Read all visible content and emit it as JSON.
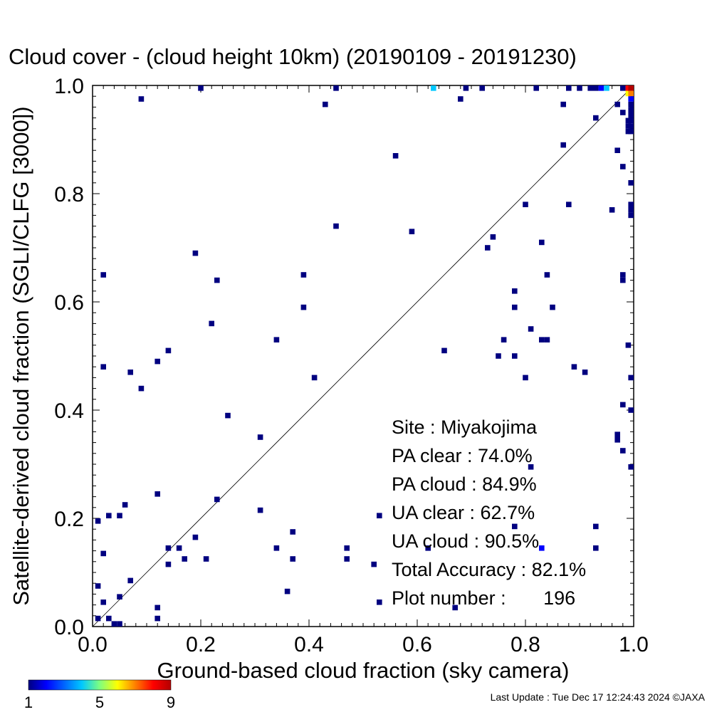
{
  "title": "Cloud cover - (cloud height 10km)  (20190109 - 20191230)",
  "stats": {
    "site": "Site : Miyakojima",
    "pa_clear": "PA clear :  74.0%",
    "pa_cloud": "PA cloud :  84.9%",
    "ua_clear": "UA clear :  62.7%",
    "ua_cloud": "UA cloud :  90.5%",
    "total_accuracy": "Total Accuracy :  82.1%",
    "plot_number": "Plot number :       196"
  },
  "colorbar": {
    "labels": [
      "1",
      "5",
      "9"
    ]
  },
  "footer": "Last Update : Tue Dec 17 12:24:43 2024  ©JAXA",
  "chart_data": {
    "type": "heatmap",
    "xlabel": "Ground-based cloud fraction (sky camera)",
    "ylabel": "Satellite-derived cloud fraction (SGLI/CLFG [3000])",
    "xlim": [
      0,
      1
    ],
    "ylim": [
      0,
      1
    ],
    "x_ticks": [
      "0.0",
      "0.2",
      "0.4",
      "0.6",
      "0.8",
      "1.0"
    ],
    "y_ticks": [
      "0.0",
      "0.2",
      "0.4",
      "0.6",
      "0.8",
      "1.0"
    ],
    "diagonal": true,
    "colorscale": {
      "min": 1,
      "max": 9,
      "colors": [
        "#000080",
        "#0000ff",
        "#00c8ff",
        "#7fff7f",
        "#ffff00",
        "#ff7f00",
        "#ff0000",
        "#b40000"
      ]
    },
    "points": [
      {
        "x": 0.01,
        "y": 0.195,
        "c": 1
      },
      {
        "x": 0.02,
        "y": 0.65,
        "c": 1
      },
      {
        "x": 0.02,
        "y": 0.48,
        "c": 1
      },
      {
        "x": 0.02,
        "y": 0.135,
        "c": 1
      },
      {
        "x": 0.01,
        "y": 0.075,
        "c": 1
      },
      {
        "x": 0.02,
        "y": 0.045,
        "c": 1
      },
      {
        "x": 0.01,
        "y": 0.015,
        "c": 1
      },
      {
        "x": 0.03,
        "y": 0.015,
        "c": 1
      },
      {
        "x": 0.04,
        "y": 0.005,
        "c": 1
      },
      {
        "x": 0.05,
        "y": 0.005,
        "c": 1
      },
      {
        "x": 0.05,
        "y": 0.055,
        "c": 1
      },
      {
        "x": 0.03,
        "y": 0.205,
        "c": 1
      },
      {
        "x": 0.05,
        "y": 0.205,
        "c": 1
      },
      {
        "x": 0.06,
        "y": 0.225,
        "c": 1
      },
      {
        "x": 0.07,
        "y": 0.085,
        "c": 1
      },
      {
        "x": 0.07,
        "y": 0.47,
        "c": 1
      },
      {
        "x": 0.09,
        "y": 0.44,
        "c": 1
      },
      {
        "x": 0.09,
        "y": 0.975,
        "c": 1
      },
      {
        "x": 0.12,
        "y": 0.49,
        "c": 1
      },
      {
        "x": 0.12,
        "y": 0.245,
        "c": 1
      },
      {
        "x": 0.12,
        "y": 0.035,
        "c": 1
      },
      {
        "x": 0.12,
        "y": 0.015,
        "c": 1
      },
      {
        "x": 0.14,
        "y": 0.51,
        "c": 1
      },
      {
        "x": 0.14,
        "y": 0.145,
        "c": 1
      },
      {
        "x": 0.14,
        "y": 0.115,
        "c": 1
      },
      {
        "x": 0.16,
        "y": 0.145,
        "c": 1
      },
      {
        "x": 0.17,
        "y": 0.125,
        "c": 1
      },
      {
        "x": 0.19,
        "y": 0.69,
        "c": 1
      },
      {
        "x": 0.19,
        "y": 0.165,
        "c": 1
      },
      {
        "x": 0.2,
        "y": 0.995,
        "c": 1
      },
      {
        "x": 0.21,
        "y": 0.125,
        "c": 1
      },
      {
        "x": 0.22,
        "y": 0.56,
        "c": 1
      },
      {
        "x": 0.23,
        "y": 0.64,
        "c": 1
      },
      {
        "x": 0.23,
        "y": 0.235,
        "c": 1
      },
      {
        "x": 0.25,
        "y": 0.39,
        "c": 1
      },
      {
        "x": 0.31,
        "y": 0.35,
        "c": 1
      },
      {
        "x": 0.31,
        "y": 0.215,
        "c": 1
      },
      {
        "x": 0.34,
        "y": 0.53,
        "c": 1
      },
      {
        "x": 0.34,
        "y": 0.145,
        "c": 1
      },
      {
        "x": 0.36,
        "y": 0.065,
        "c": 1
      },
      {
        "x": 0.37,
        "y": 0.175,
        "c": 1
      },
      {
        "x": 0.37,
        "y": 0.125,
        "c": 1
      },
      {
        "x": 0.39,
        "y": 0.65,
        "c": 1
      },
      {
        "x": 0.39,
        "y": 0.59,
        "c": 1
      },
      {
        "x": 0.41,
        "y": 0.46,
        "c": 1
      },
      {
        "x": 0.43,
        "y": 0.965,
        "c": 1
      },
      {
        "x": 0.45,
        "y": 0.995,
        "c": 1
      },
      {
        "x": 0.45,
        "y": 0.74,
        "c": 1
      },
      {
        "x": 0.47,
        "y": 0.145,
        "c": 1
      },
      {
        "x": 0.47,
        "y": 0.125,
        "c": 1
      },
      {
        "x": 0.52,
        "y": 0.115,
        "c": 1
      },
      {
        "x": 0.53,
        "y": 0.205,
        "c": 1
      },
      {
        "x": 0.53,
        "y": 0.045,
        "c": 1
      },
      {
        "x": 0.56,
        "y": 0.87,
        "c": 1
      },
      {
        "x": 0.59,
        "y": 0.73,
        "c": 1
      },
      {
        "x": 0.62,
        "y": 0.145,
        "c": 1
      },
      {
        "x": 0.63,
        "y": 0.995,
        "c": 3
      },
      {
        "x": 0.65,
        "y": 0.51,
        "c": 1
      },
      {
        "x": 0.67,
        "y": 0.035,
        "c": 1
      },
      {
        "x": 0.68,
        "y": 0.975,
        "c": 1
      },
      {
        "x": 0.69,
        "y": 0.995,
        "c": 1
      },
      {
        "x": 0.72,
        "y": 0.995,
        "c": 1
      },
      {
        "x": 0.73,
        "y": 0.7,
        "c": 1
      },
      {
        "x": 0.74,
        "y": 0.72,
        "c": 1
      },
      {
        "x": 0.75,
        "y": 0.5,
        "c": 1
      },
      {
        "x": 0.76,
        "y": 0.53,
        "c": 1
      },
      {
        "x": 0.78,
        "y": 0.62,
        "c": 1
      },
      {
        "x": 0.78,
        "y": 0.59,
        "c": 1
      },
      {
        "x": 0.78,
        "y": 0.5,
        "c": 1
      },
      {
        "x": 0.78,
        "y": 0.185,
        "c": 1
      },
      {
        "x": 0.8,
        "y": 0.78,
        "c": 1
      },
      {
        "x": 0.8,
        "y": 0.46,
        "c": 1
      },
      {
        "x": 0.81,
        "y": 0.55,
        "c": 1
      },
      {
        "x": 0.81,
        "y": 0.295,
        "c": 1
      },
      {
        "x": 0.82,
        "y": 0.995,
        "c": 1
      },
      {
        "x": 0.83,
        "y": 0.71,
        "c": 1
      },
      {
        "x": 0.83,
        "y": 0.53,
        "c": 1
      },
      {
        "x": 0.84,
        "y": 0.53,
        "c": 1
      },
      {
        "x": 0.84,
        "y": 0.65,
        "c": 1
      },
      {
        "x": 0.85,
        "y": 0.59,
        "c": 1
      },
      {
        "x": 0.83,
        "y": 0.145,
        "c": 2
      },
      {
        "x": 0.87,
        "y": 0.965,
        "c": 1
      },
      {
        "x": 0.87,
        "y": 0.89,
        "c": 1
      },
      {
        "x": 0.88,
        "y": 0.78,
        "c": 1
      },
      {
        "x": 0.88,
        "y": 0.995,
        "c": 1
      },
      {
        "x": 0.89,
        "y": 0.48,
        "c": 1
      },
      {
        "x": 0.9,
        "y": 0.995,
        "c": 1
      },
      {
        "x": 0.91,
        "y": 0.47,
        "c": 1
      },
      {
        "x": 0.92,
        "y": 0.995,
        "c": 1
      },
      {
        "x": 0.93,
        "y": 0.995,
        "c": 1
      },
      {
        "x": 0.93,
        "y": 0.94,
        "c": 1
      },
      {
        "x": 0.93,
        "y": 0.185,
        "c": 1
      },
      {
        "x": 0.93,
        "y": 0.145,
        "c": 1
      },
      {
        "x": 0.94,
        "y": 0.995,
        "c": 2
      },
      {
        "x": 0.95,
        "y": 0.995,
        "c": 3
      },
      {
        "x": 0.96,
        "y": 0.77,
        "c": 1
      },
      {
        "x": 0.97,
        "y": 0.88,
        "c": 1
      },
      {
        "x": 0.97,
        "y": 0.355,
        "c": 1
      },
      {
        "x": 0.97,
        "y": 0.345,
        "c": 1
      },
      {
        "x": 0.97,
        "y": 0.965,
        "c": 1
      },
      {
        "x": 0.98,
        "y": 0.995,
        "c": 1
      },
      {
        "x": 0.98,
        "y": 0.95,
        "c": 1
      },
      {
        "x": 0.98,
        "y": 0.85,
        "c": 1
      },
      {
        "x": 0.98,
        "y": 0.65,
        "c": 1
      },
      {
        "x": 0.98,
        "y": 0.64,
        "c": 1
      },
      {
        "x": 0.98,
        "y": 0.41,
        "c": 1
      },
      {
        "x": 0.98,
        "y": 0.325,
        "c": 1
      },
      {
        "x": 0.99,
        "y": 0.52,
        "c": 1
      },
      {
        "x": 0.99,
        "y": 0.995,
        "c": 8
      },
      {
        "x": 0.99,
        "y": 0.985,
        "c": 5
      },
      {
        "x": 1.0,
        "y": 0.995,
        "c": 9
      },
      {
        "x": 1.0,
        "y": 0.985,
        "c": 7
      },
      {
        "x": 1.0,
        "y": 0.975,
        "c": 2
      },
      {
        "x": 1.0,
        "y": 0.965,
        "c": 1
      },
      {
        "x": 1.0,
        "y": 0.955,
        "c": 1
      },
      {
        "x": 1.0,
        "y": 0.945,
        "c": 1
      },
      {
        "x": 0.99,
        "y": 0.935,
        "c": 1
      },
      {
        "x": 1.0,
        "y": 0.935,
        "c": 1
      },
      {
        "x": 0.99,
        "y": 0.925,
        "c": 1
      },
      {
        "x": 1.0,
        "y": 0.925,
        "c": 1
      },
      {
        "x": 0.99,
        "y": 0.915,
        "c": 1
      },
      {
        "x": 1.0,
        "y": 0.915,
        "c": 1
      },
      {
        "x": 1.0,
        "y": 0.82,
        "c": 1
      },
      {
        "x": 1.0,
        "y": 0.78,
        "c": 1
      },
      {
        "x": 1.0,
        "y": 0.77,
        "c": 1
      },
      {
        "x": 1.0,
        "y": 0.76,
        "c": 1
      },
      {
        "x": 1.0,
        "y": 0.46,
        "c": 1
      },
      {
        "x": 1.0,
        "y": 0.4,
        "c": 1
      },
      {
        "x": 1.0,
        "y": 0.295,
        "c": 1
      }
    ]
  }
}
